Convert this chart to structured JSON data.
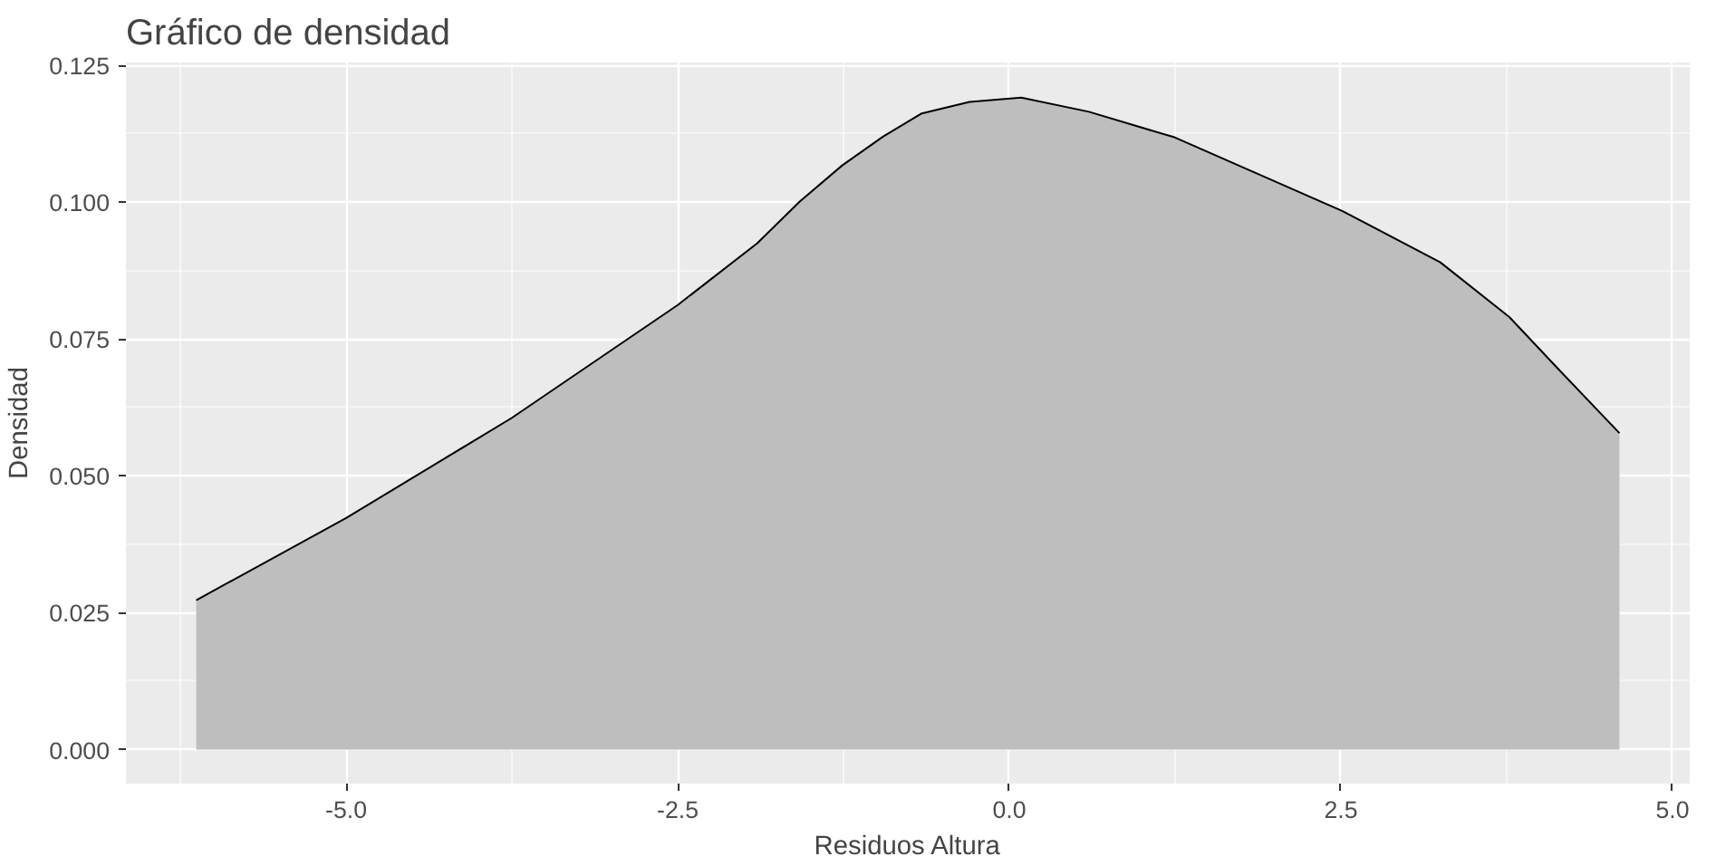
{
  "chart_data": {
    "type": "area",
    "title": "Gráfico de densidad",
    "xlabel": "Residuos Altura",
    "ylabel": "Densidad",
    "x": [
      -6.13,
      -5.0,
      -3.75,
      -2.5,
      -1.9,
      -1.58,
      -1.26,
      -0.95,
      -0.66,
      -0.3,
      0.09,
      0.6,
      1.25,
      2.51,
      3.25,
      3.77,
      4.14,
      4.6
    ],
    "series": [
      {
        "color": "#bebebe",
        "values": [
          0.0273,
          0.0423,
          0.0606,
          0.0812,
          0.0925,
          0.1001,
          0.1067,
          0.112,
          0.1162,
          0.1183,
          0.1191,
          0.1165,
          0.1118,
          0.0984,
          0.089,
          0.079,
          0.0695,
          0.0578
        ]
      }
    ],
    "xlim": [
      -6.66,
      5.13
    ],
    "ylim": [
      -0.0062,
      0.1255
    ],
    "xticks": [
      {
        "value": -5,
        "label": "-5.0"
      },
      {
        "value": -2.5,
        "label": "-2.5"
      },
      {
        "value": 0,
        "label": "0.0"
      },
      {
        "value": 2.5,
        "label": "2.5"
      },
      {
        "value": 5,
        "label": "5.0"
      }
    ],
    "yticks": [
      {
        "value": 0,
        "label": "0.000"
      },
      {
        "value": 0.025,
        "label": "0.025"
      },
      {
        "value": 0.05,
        "label": "0.050"
      },
      {
        "value": 0.075,
        "label": "0.075"
      },
      {
        "value": 0.1,
        "label": "0.100"
      },
      {
        "value": 0.125,
        "label": "0.125"
      }
    ],
    "grid": true
  }
}
